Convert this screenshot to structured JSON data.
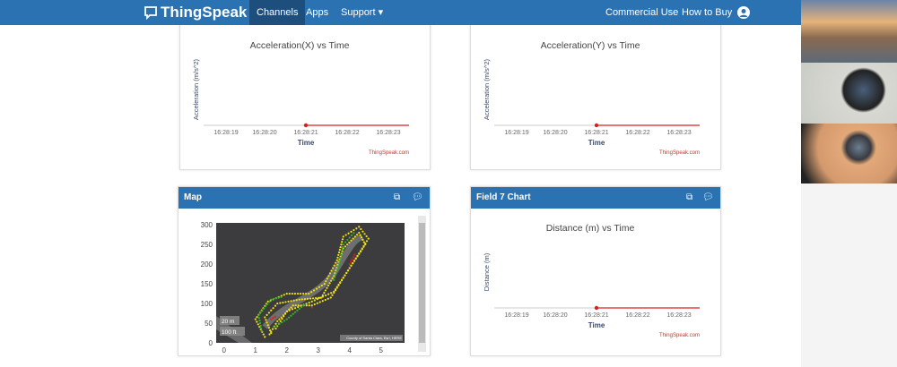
{
  "nav": {
    "brand": "ThingSpeak",
    "tm": "™",
    "items": [
      "Channels",
      "Apps",
      "Support ▾"
    ],
    "right": [
      "Commercial Use",
      "How to Buy"
    ],
    "active": "Channels"
  },
  "panels": [
    {
      "id": "accx",
      "header": "",
      "chart_index": 0
    },
    {
      "id": "accy",
      "header": "",
      "chart_index": 1
    },
    {
      "id": "map",
      "header": "Map",
      "chart_index": 3
    },
    {
      "id": "field7",
      "header": "Field 7 Chart",
      "chart_index": 2
    }
  ],
  "icons": {
    "external": "external-link-icon",
    "comment": "comment-icon",
    "user": "user-icon",
    "logo": "chat-bubble-icon"
  },
  "chart_data": [
    {
      "type": "line",
      "title": "Acceleration(X) vs Time",
      "xlabel": "Time",
      "ylabel": "Acceleration (m/s^2)",
      "xticks": [
        "16:28:19",
        "16:28:20",
        "16:28:21",
        "16:28:22",
        "16:28:23"
      ],
      "points": [
        {
          "x": "16:28:21",
          "y": 0
        }
      ],
      "credit": "ThingSpeak.com",
      "line_color": "#d62020"
    },
    {
      "type": "line",
      "title": "Acceleration(Y) vs Time",
      "xlabel": "Time",
      "ylabel": "Acceleration (m/s^2)",
      "xticks": [
        "16:28:19",
        "16:28:20",
        "16:28:21",
        "16:28:22",
        "16:28:23"
      ],
      "points": [
        {
          "x": "16:28:21",
          "y": 0
        }
      ],
      "credit": "ThingSpeak.com",
      "line_color": "#d62020"
    },
    {
      "type": "line",
      "title": "Distance (m) vs Time",
      "xlabel": "Time",
      "ylabel": "Distance (m)",
      "xticks": [
        "16:28:19",
        "16:28:20",
        "16:28:21",
        "16:28:22",
        "16:28:23"
      ],
      "points": [
        {
          "x": "16:28:21",
          "y": 0
        }
      ],
      "credit": "ThingSpeak.com",
      "line_color": "#d62020"
    },
    {
      "type": "scatter",
      "title": "",
      "xticks": [
        0,
        1,
        2,
        3,
        4,
        5
      ],
      "yticks": [
        0,
        50,
        100,
        150,
        200,
        250,
        300
      ],
      "xlim": [
        -0.25,
        5.75
      ],
      "ylim": [
        0,
        305
      ],
      "scale_labels": [
        "20 m",
        "100 ft"
      ],
      "attribution": "County of Santa Clara, Esri, HERE",
      "tracks": [
        {
          "color": "#f2e21a",
          "points": [
            [
              1.3,
              15
            ],
            [
              1.0,
              60
            ],
            [
              1.4,
              105
            ],
            [
              2.0,
              125
            ],
            [
              2.7,
              125
            ],
            [
              3.2,
              150
            ],
            [
              3.6,
              210
            ],
            [
              3.8,
              270
            ],
            [
              4.3,
              295
            ],
            [
              4.6,
              265
            ],
            [
              4.2,
              215
            ],
            [
              3.8,
              165
            ],
            [
              3.4,
              115
            ],
            [
              2.8,
              95
            ],
            [
              2.2,
              95
            ],
            [
              1.7,
              55
            ],
            [
              1.4,
              15
            ]
          ]
        },
        {
          "color": "#f2e21a",
          "points": [
            [
              1.5,
              25
            ],
            [
              1.3,
              65
            ],
            [
              1.7,
              100
            ],
            [
              2.4,
              110
            ],
            [
              3.1,
              115
            ],
            [
              3.5,
              170
            ],
            [
              3.8,
              240
            ],
            [
              4.3,
              280
            ],
            [
              4.5,
              250
            ],
            [
              4.0,
              190
            ],
            [
              3.5,
              130
            ],
            [
              2.8,
              105
            ],
            [
              2.0,
              80
            ],
            [
              1.6,
              30
            ]
          ]
        },
        {
          "color": "#3db22a",
          "points": [
            [
              1.2,
              30
            ],
            [
              1.1,
              70
            ],
            [
              1.5,
              110
            ],
            [
              1.9,
              118
            ]
          ]
        },
        {
          "color": "#3db22a",
          "points": [
            [
              3.5,
              160
            ],
            [
              3.7,
              210
            ],
            [
              3.8,
              250
            ],
            [
              4.2,
              285
            ]
          ]
        },
        {
          "color": "#3db22a",
          "points": [
            [
              1.6,
              40
            ],
            [
              2.0,
              60
            ],
            [
              2.6,
              100
            ]
          ]
        },
        {
          "color": "#d62020",
          "points": [
            [
              1.5,
              60
            ],
            [
              1.7,
              70
            ]
          ]
        },
        {
          "color": "#d62020",
          "points": [
            [
              4.0,
              200
            ],
            [
              4.2,
              230
            ]
          ]
        },
        {
          "color": "#d62020",
          "points": [
            [
              2.8,
              90
            ],
            [
              2.9,
              92
            ]
          ]
        }
      ]
    }
  ]
}
